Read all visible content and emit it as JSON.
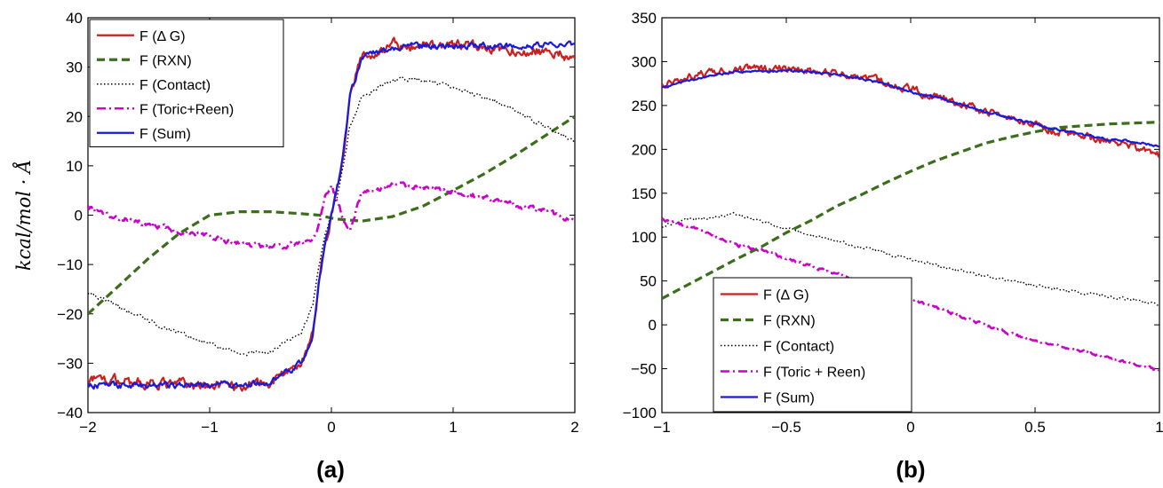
{
  "figure": {
    "panel_labels": [
      "(a)",
      "(b)"
    ]
  },
  "chart_data": [
    {
      "type": "line",
      "panel": "(a)",
      "ylabel": "kcal/mol · Å",
      "xlim": [
        -2,
        2
      ],
      "ylim": [
        -40,
        40
      ],
      "xticks": [
        -2,
        -1,
        0,
        1,
        2
      ],
      "xtick_labels": [
        "−2",
        "−1",
        "0",
        "1",
        "2"
      ],
      "yticks": [
        40,
        30,
        20,
        10,
        0,
        -10,
        -20,
        -30,
        -40
      ],
      "ytick_labels": [
        "40",
        "30",
        "20",
        "10",
        "0",
        "−10",
        "−20",
        "−30",
        "−40"
      ],
      "legend_position": "top-left",
      "x": [
        -2.0,
        -1.75,
        -1.5,
        -1.25,
        -1.0,
        -0.75,
        -0.5,
        -0.25,
        -0.15,
        -0.1,
        -0.05,
        0.0,
        0.05,
        0.1,
        0.15,
        0.25,
        0.5,
        0.75,
        1.0,
        1.25,
        1.5,
        1.75,
        2.0
      ],
      "series": [
        {
          "name": "F (Δ G)",
          "color": "#cc1f1f",
          "style": "solid",
          "noise": 1.2,
          "values": [
            -33,
            -33.5,
            -34,
            -34.3,
            -34.5,
            -34.5,
            -34,
            -30,
            -24,
            -13,
            -6,
            0,
            6,
            13,
            24,
            32,
            34.5,
            34.5,
            34.3,
            34,
            33.5,
            33,
            32
          ]
        },
        {
          "name": "F (RXN)",
          "color": "#3a6e1a",
          "style": "dash",
          "noise": 0,
          "values": [
            -20,
            -14.4,
            -8.7,
            -3.7,
            0,
            0.7,
            0.7,
            0.3,
            0.1,
            0.0,
            -0.3,
            -0.6,
            -0.8,
            -0.9,
            -1.0,
            -1.2,
            -0.3,
            1.8,
            5,
            8.3,
            12,
            16,
            20
          ]
        },
        {
          "name": "F (Contact)",
          "color": "#000000",
          "style": "dot",
          "noise": 0.5,
          "values": [
            -15.5,
            -18.5,
            -21.5,
            -24,
            -26,
            -28,
            -27.5,
            -24,
            -18,
            -10,
            -4,
            0,
            4,
            10,
            18,
            24,
            27.5,
            27.5,
            26,
            24,
            21.5,
            18,
            15
          ]
        },
        {
          "name": "F (Toric+Reen)",
          "color": "#cc00cc",
          "style": "dashdot",
          "noise": 0.6,
          "values": [
            1.5,
            -0.5,
            -2,
            -3.2,
            -4.5,
            -5.6,
            -6.5,
            -5.8,
            -4.5,
            -2,
            4,
            6,
            3,
            -1,
            -3,
            4.5,
            6.2,
            5.8,
            4.8,
            3.5,
            2.2,
            0.8,
            -1
          ]
        },
        {
          "name": "F (Sum)",
          "color": "#1a1adb",
          "style": "solid",
          "noise": 0.7,
          "values": [
            -34.5,
            -34.5,
            -34.5,
            -34.5,
            -34.5,
            -34.3,
            -34,
            -30,
            -24,
            -13,
            -6,
            0,
            6,
            13,
            24,
            32,
            34,
            34.2,
            34.3,
            34.4,
            34.4,
            34.4,
            34.5
          ]
        }
      ]
    },
    {
      "type": "line",
      "panel": "(b)",
      "ylabel": "",
      "xlim": [
        -1,
        1
      ],
      "ylim": [
        -100,
        350
      ],
      "xticks": [
        -1,
        -0.5,
        0,
        0.5,
        1
      ],
      "xtick_labels": [
        "−1",
        "−0.5",
        "0",
        "0.5",
        "1"
      ],
      "yticks": [
        350,
        300,
        250,
        200,
        150,
        100,
        50,
        0,
        -50,
        -100
      ],
      "ytick_labels": [
        "350",
        "300",
        "250",
        "200",
        "150",
        "100",
        "50",
        "0",
        "−50",
        "−100"
      ],
      "legend_position": "bottom-center",
      "x": [
        -1.0,
        -0.9,
        -0.8,
        -0.7,
        -0.6,
        -0.5,
        -0.4,
        -0.3,
        -0.2,
        -0.1,
        0.0,
        0.1,
        0.2,
        0.3,
        0.4,
        0.5,
        0.6,
        0.7,
        0.8,
        0.9,
        1.0
      ],
      "series": [
        {
          "name": "F (Δ G)",
          "color": "#cc1f1f",
          "style": "solid",
          "noise": 5,
          "values": [
            275,
            282,
            287,
            292,
            291,
            292,
            290,
            287,
            283,
            277,
            268,
            260,
            252,
            243,
            235,
            227,
            220,
            214,
            209,
            203,
            192
          ]
        },
        {
          "name": "F (RXN)",
          "color": "#3a6e1a",
          "style": "dash",
          "noise": 0,
          "values": [
            30,
            45,
            60,
            75,
            89,
            105,
            119,
            135,
            148,
            162,
            175,
            187,
            197,
            207,
            214,
            220,
            225,
            227,
            229,
            230,
            231
          ]
        },
        {
          "name": "F (Contact)",
          "color": "#000000",
          "style": "dot",
          "noise": 2,
          "values": [
            112,
            120,
            122,
            126,
            118,
            110,
            103,
            95,
            89,
            82,
            75,
            68,
            62,
            55,
            50,
            45,
            40,
            36,
            32,
            28,
            24
          ]
        },
        {
          "name": "F (Toric + Reen)",
          "color": "#cc00cc",
          "style": "dashdot",
          "noise": 2,
          "values": [
            120,
            113,
            103,
            91,
            85,
            76,
            67,
            58,
            50,
            40,
            30,
            20,
            10,
            0,
            -10,
            -18,
            -25,
            -30,
            -38,
            -45,
            -52
          ]
        },
        {
          "name": "F (Sum)",
          "color": "#1a1adb",
          "style": "solid",
          "noise": 1.5,
          "values": [
            270,
            278,
            283,
            289,
            288,
            290,
            288,
            285,
            281,
            274,
            266,
            259,
            251,
            243,
            236,
            229,
            222,
            216,
            212,
            208,
            204
          ]
        }
      ]
    }
  ]
}
